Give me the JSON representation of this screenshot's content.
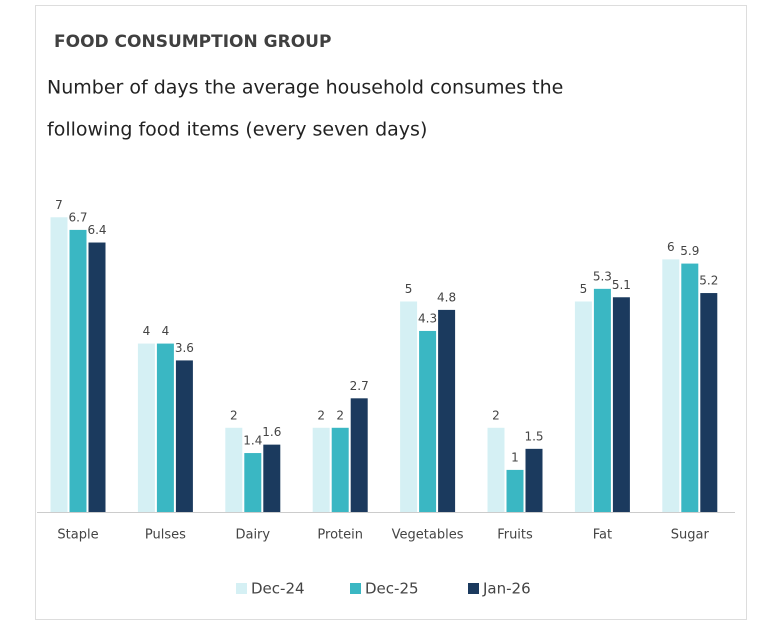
{
  "chart_data": {
    "type": "bar",
    "title": "FOOD CONSUMPTION GROUP",
    "subtitle": [
      "Number of days the average household consumes the",
      "following food items (every seven days)"
    ],
    "categories": [
      "Staple",
      "Pulses",
      "Dairy",
      "Protein",
      "Vegetables",
      "Fruits",
      "Fat",
      "Sugar"
    ],
    "series": [
      {
        "name": "Dec-24",
        "color": "#d5f0f4",
        "values": [
          7,
          4,
          2,
          2,
          5,
          2,
          5,
          6
        ]
      },
      {
        "name": "Dec-25",
        "color": "#3ab7c3",
        "values": [
          6.7,
          4,
          1.4,
          2,
          4.3,
          1,
          5.3,
          5.9
        ]
      },
      {
        "name": "Jan-26",
        "color": "#1b3a5e",
        "values": [
          6.4,
          3.6,
          1.6,
          2.7,
          4.8,
          1.5,
          5.1,
          5.2
        ]
      }
    ],
    "ylim": [
      0,
      7.6
    ]
  }
}
